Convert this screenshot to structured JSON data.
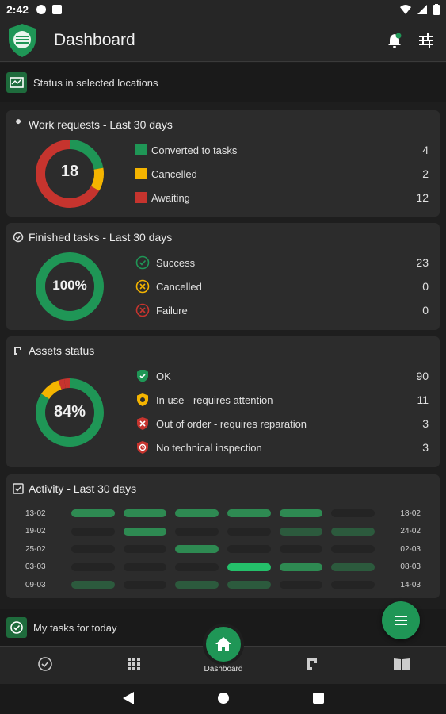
{
  "status_bar": {
    "time": "2:42"
  },
  "app_bar": {
    "title": "Dashboard"
  },
  "locations": {
    "label": "Status in selected locations"
  },
  "colors": {
    "green": "#1f9656",
    "yellow": "#f4b400",
    "red": "#c6342e"
  },
  "work_requests": {
    "title": "Work requests - Last 30 days",
    "total": "18",
    "items": [
      {
        "label": "Converted to tasks",
        "value": "4",
        "color": "#1f9656"
      },
      {
        "label": "Cancelled",
        "value": "2",
        "color": "#f4b400"
      },
      {
        "label": "Awaiting",
        "value": "12",
        "color": "#c6342e"
      }
    ]
  },
  "finished_tasks": {
    "title": "Finished tasks - Last 30 days",
    "center": "100%",
    "items": [
      {
        "label": "Success",
        "value": "23",
        "icon": "check-circle-icon"
      },
      {
        "label": "Cancelled",
        "value": "0",
        "icon": "cancel-circle-icon"
      },
      {
        "label": "Failure",
        "value": "0",
        "icon": "failure-circle-icon"
      }
    ]
  },
  "assets": {
    "title": "Assets status",
    "center": "84%",
    "items": [
      {
        "label": "OK",
        "value": "90",
        "icon": "shield-check-icon"
      },
      {
        "label": "In use - requires attention",
        "value": "11",
        "icon": "shield-warning-icon"
      },
      {
        "label": "Out of order - requires reparation",
        "value": "3",
        "icon": "out-of-order-icon"
      },
      {
        "label": "No technical inspection",
        "value": "3",
        "icon": "no-inspection-icon"
      }
    ]
  },
  "activity": {
    "title": "Activity - Last 30 days",
    "rows": [
      {
        "start": "13-02",
        "end": "18-02",
        "levels": [
          2,
          2,
          2,
          2,
          2,
          0
        ]
      },
      {
        "start": "19-02",
        "end": "24-02",
        "levels": [
          0,
          2,
          0,
          0,
          1,
          1
        ]
      },
      {
        "start": "25-02",
        "end": "02-03",
        "levels": [
          0,
          0,
          2,
          0,
          0,
          0
        ]
      },
      {
        "start": "03-03",
        "end": "08-03",
        "levels": [
          0,
          0,
          0,
          3,
          2,
          1
        ]
      },
      {
        "start": "09-03",
        "end": "14-03",
        "levels": [
          1,
          0,
          1,
          1,
          0,
          0
        ]
      }
    ]
  },
  "my_tasks": {
    "label": "My tasks for today"
  },
  "bottom_nav": {
    "home_label": "Dashboard"
  }
}
